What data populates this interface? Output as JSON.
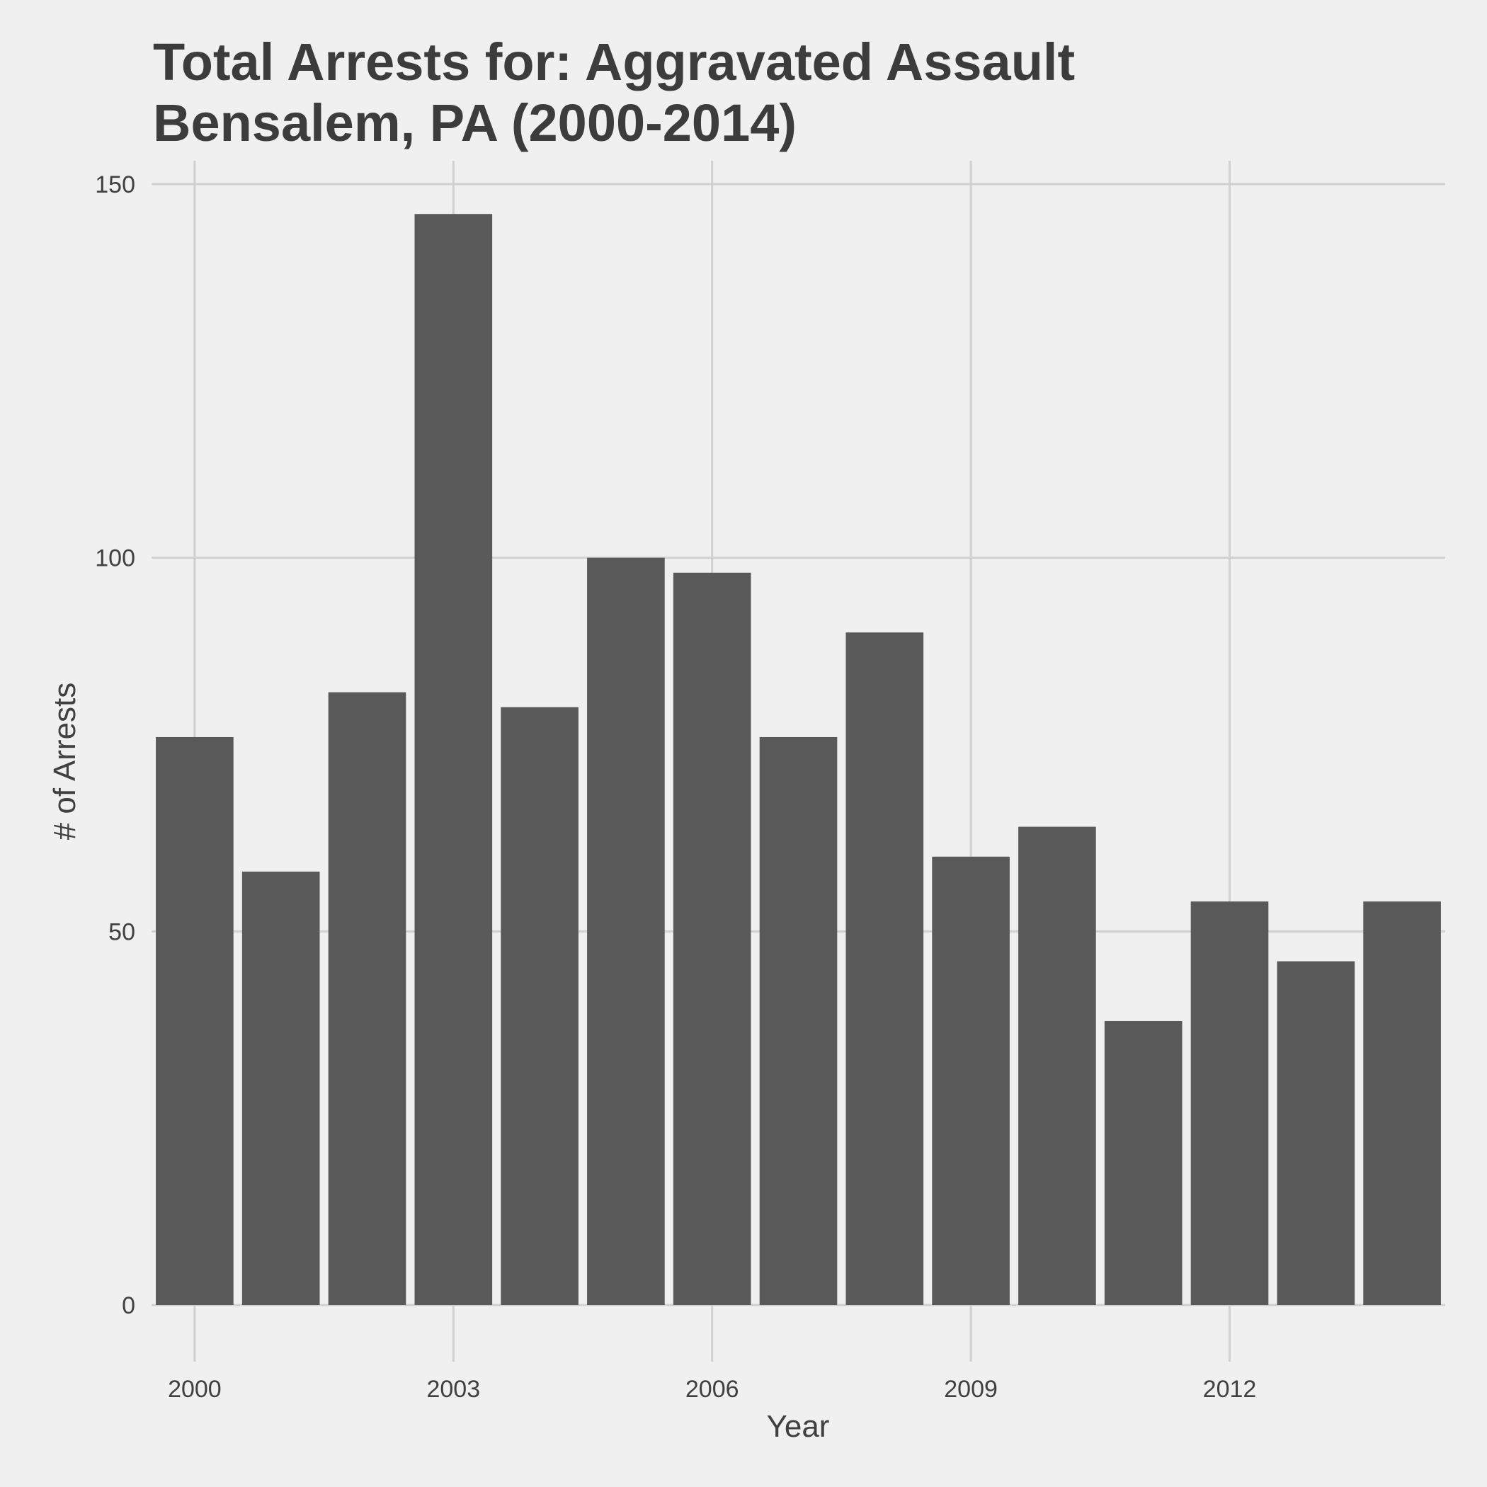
{
  "chart_data": {
    "type": "bar",
    "title_lines": [
      "Total Arrests for: Aggravated Assault",
      "Bensalem, PA (2000-2014)"
    ],
    "xlabel": "Year",
    "ylabel": "# of Arrests",
    "categories": [
      2000,
      2001,
      2002,
      2003,
      2004,
      2005,
      2006,
      2007,
      2008,
      2009,
      2010,
      2011,
      2012,
      2013,
      2014
    ],
    "values": [
      76,
      58,
      82,
      146,
      80,
      100,
      98,
      76,
      90,
      60,
      64,
      38,
      54,
      46,
      54
    ],
    "xticks": [
      "2000",
      "2003",
      "2006",
      "2009",
      "2012"
    ],
    "yticks": [
      "0",
      "50",
      "100",
      "150"
    ],
    "ylim": [
      0,
      150
    ],
    "grid": true,
    "bar_color": "#595959",
    "background_color": "#f0f0f0",
    "grid_color": "#d0d0d0"
  }
}
